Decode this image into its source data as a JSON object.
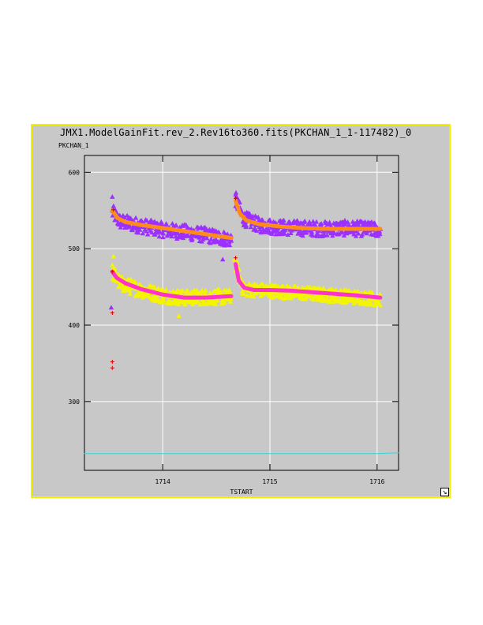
{
  "window": {
    "title": "JMX1.ModelGainFit.rev_2.Rev16to360.fits(PKCHAN_1_1-117482)_0"
  },
  "icons": {
    "resize": "resize-arrow-icon"
  },
  "colors": {
    "frame_border": "#f0f000",
    "frame_bg": "#c8c8c8",
    "purple_data": "#9b30ff",
    "yellow_data": "#f5f500",
    "orange_fit": "#ff8c1a",
    "magenta_fit": "#ff33cc",
    "cyan_line": "#33d6d6",
    "red_marker": "#cc0000"
  },
  "chart_data": {
    "type": "scatter",
    "title": "JMX1.ModelGainFit.rev_2.Rev16to360.fits(PKCHAN_1_1-117482)_0",
    "xlabel": "TSTART",
    "ylabel": "PKCHAN_1",
    "xlim": [
      1713.27,
      1716.2
    ],
    "ylim": [
      210,
      622
    ],
    "xticks": [
      1714,
      1715,
      1716
    ],
    "yticks": [
      300,
      400,
      500,
      600
    ],
    "grid": true,
    "series": [
      {
        "kind": "scatter",
        "marker": "triangle",
        "color": "#9b30ff",
        "segments": [
          {
            "x": [
              1713.53,
              1713.6,
              1713.8,
              1714.0,
              1714.2,
              1714.4,
              1714.64
            ],
            "y": [
              548,
              536,
              530,
              525,
              522,
              518,
              512
            ],
            "scatter": 10
          },
          {
            "x": [
              1714.68,
              1714.75,
              1714.9,
              1715.1,
              1715.3,
              1715.5,
              1715.7,
              1715.9,
              1716.03
            ],
            "y": [
              565,
              540,
              531,
              528,
              527,
              526,
              527,
              526,
              525
            ],
            "scatter": 10
          }
        ],
        "outliers": [
          {
            "x": 1713.53,
            "y": 568
          },
          {
            "x": 1714.68,
            "y": 571
          },
          {
            "x": 1714.56,
            "y": 486
          },
          {
            "x": 1713.52,
            "y": 423
          }
        ]
      },
      {
        "kind": "scatter",
        "marker": "triangle",
        "color": "#f5f500",
        "segments": [
          {
            "x": [
              1713.53,
              1713.6,
              1713.8,
              1714.0,
              1714.2,
              1714.4,
              1714.64
            ],
            "y": [
              470,
              455,
              446,
              439,
              436,
              437,
              437
            ],
            "scatter": 10
          },
          {
            "x": [
              1714.68,
              1714.75,
              1714.9,
              1715.1,
              1715.3,
              1715.5,
              1715.7,
              1715.9,
              1716.03
            ],
            "y": [
              480,
              447,
              446,
              444,
              442,
              440,
              438,
              436,
              434
            ],
            "scatter": 9
          }
        ],
        "outliers": [
          {
            "x": 1713.54,
            "y": 490
          },
          {
            "x": 1714.67,
            "y": 486
          },
          {
            "x": 1714.15,
            "y": 412
          }
        ]
      },
      {
        "kind": "line",
        "color": "#ff8c1a",
        "segments": [
          {
            "x": [
              1713.53,
              1713.58,
              1713.65,
              1713.8,
              1714.0,
              1714.2,
              1714.4,
              1714.64
            ],
            "y": [
              550,
              540,
              535,
              531,
              527,
              523,
              519,
              514
            ]
          },
          {
            "x": [
              1714.68,
              1714.72,
              1714.78,
              1714.9,
              1715.1,
              1715.3,
              1715.5,
              1715.7,
              1715.9,
              1716.03
            ],
            "y": [
              563,
              546,
              537,
              532,
              529,
              527,
              526,
              526,
              526,
              526
            ]
          }
        ]
      },
      {
        "kind": "line",
        "color": "#ff33cc",
        "segments": [
          {
            "x": [
              1713.53,
              1713.57,
              1713.65,
              1713.8,
              1714.0,
              1714.2,
              1714.4,
              1714.64
            ],
            "y": [
              470,
              462,
              455,
              447,
              440,
              436,
              436,
              438
            ]
          },
          {
            "x": [
              1714.68,
              1714.71,
              1714.76,
              1714.85,
              1715.0,
              1715.2,
              1715.4,
              1715.6,
              1715.8,
              1716.03
            ],
            "y": [
              480,
              458,
              449,
              446,
              446,
              445,
              443,
              441,
              439,
              436
            ]
          }
        ]
      },
      {
        "kind": "markers",
        "marker": "plus",
        "color": "#cc0000",
        "points": [
          {
            "x": 1713.53,
            "y": 416
          },
          {
            "x": 1713.53,
            "y": 352
          },
          {
            "x": 1713.53,
            "y": 344
          },
          {
            "x": 1713.53,
            "y": 470
          },
          {
            "x": 1713.54,
            "y": 551
          },
          {
            "x": 1714.68,
            "y": 488
          },
          {
            "x": 1714.68,
            "y": 566
          }
        ]
      },
      {
        "kind": "line",
        "color": "#33d6d6",
        "x": [
          1713.27,
          1716.0,
          1716.2
        ],
        "y": [
          232,
          232,
          233
        ]
      }
    ]
  }
}
